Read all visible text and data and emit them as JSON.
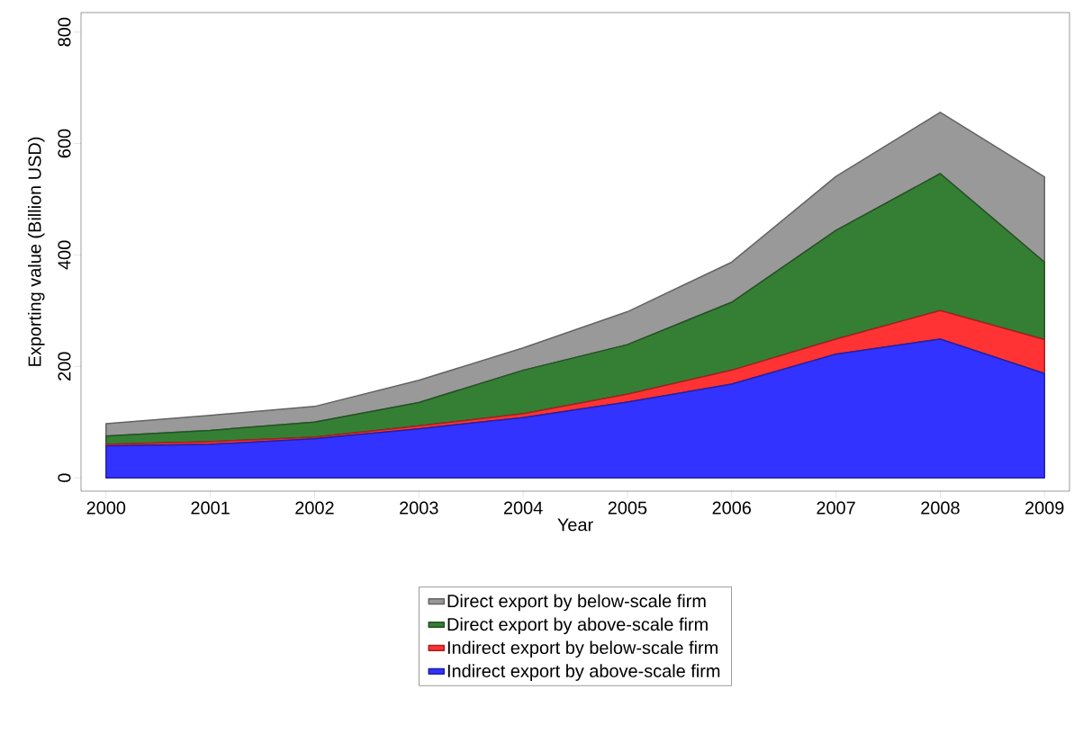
{
  "chart_data": {
    "type": "area",
    "stacked": true,
    "xlabel": "Year",
    "ylabel": "Exporting value (Billion USD)",
    "x": [
      2000,
      2001,
      2002,
      2003,
      2004,
      2005,
      2006,
      2007,
      2008,
      2009
    ],
    "xlim": [
      1999.76,
      2009.24
    ],
    "xticks": [
      2000,
      2001,
      2002,
      2003,
      2004,
      2005,
      2006,
      2007,
      2008,
      2009
    ],
    "ylim": [
      -24,
      835
    ],
    "yticks": [
      0,
      200,
      400,
      600,
      800
    ],
    "grid": false,
    "legend": "bottom",
    "series": [
      {
        "name": "Indirect export by above-scale firm",
        "color": "#3333ff",
        "values": [
          57,
          60,
          70,
          88,
          108,
          136,
          168,
          222,
          249,
          187
        ]
      },
      {
        "name": "Indirect export by below-scale firm",
        "color": "#ff3333",
        "values": [
          3,
          5,
          3,
          5,
          7,
          14,
          25,
          27,
          51,
          61
        ]
      },
      {
        "name": "Direct export by above-scale firm",
        "color": "#357f35",
        "values": [
          15,
          20,
          27,
          42,
          78,
          89,
          122,
          195,
          246,
          139
        ]
      },
      {
        "name": "Direct export by below-scale firm",
        "color": "#999999",
        "values": [
          22,
          27,
          28,
          40,
          40,
          59,
          72,
          97,
          110,
          153
        ]
      }
    ]
  }
}
